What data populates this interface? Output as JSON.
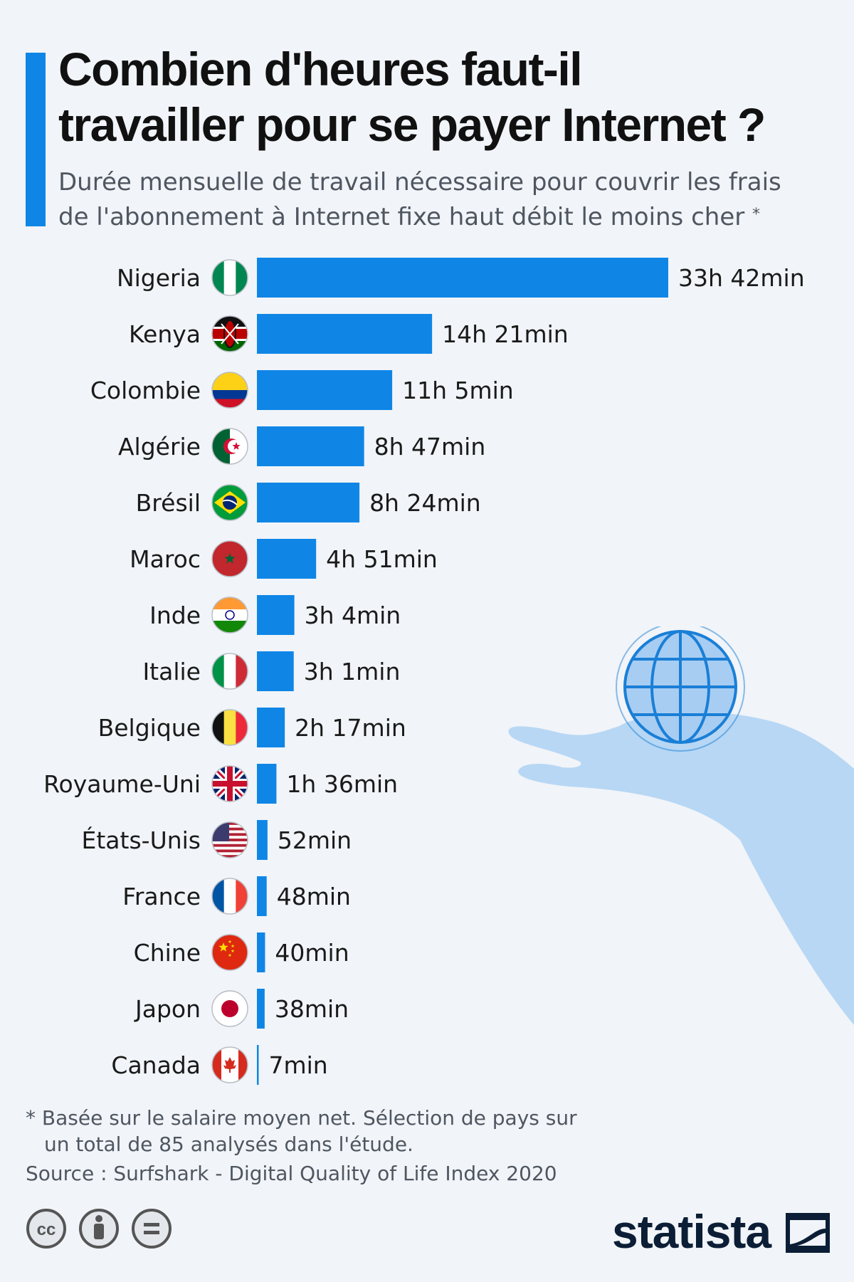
{
  "header": {
    "title_line1": "Combien d'heures faut-il",
    "title_line2": "travailler pour se payer Internet ?",
    "subtitle_line1": "Durée mensuelle de travail nécessaire pour couvrir les frais",
    "subtitle_line2": "de l'abonnement à Internet fixe haut débit le moins cher",
    "subtitle_marker": "*"
  },
  "colors": {
    "accent": "#0f86e6",
    "bar": "#0f86e6",
    "background": "#f1f4f8"
  },
  "chart_data": {
    "type": "bar",
    "orientation": "horizontal",
    "unit": "minutes",
    "grid": false,
    "categories": [
      "Nigeria",
      "Kenya",
      "Colombie",
      "Algérie",
      "Brésil",
      "Maroc",
      "Inde",
      "Italie",
      "Belgique",
      "Royaume-Uni",
      "États-Unis",
      "France",
      "Chine",
      "Japon",
      "Canada"
    ],
    "values": [
      2022,
      861,
      665,
      527,
      504,
      291,
      184,
      181,
      137,
      96,
      52,
      48,
      40,
      38,
      7
    ],
    "value_labels": [
      "33h 42min",
      "14h 21min",
      "11h 5min",
      "8h 47min",
      "8h 24min",
      "4h 51min",
      "3h 4min",
      "3h 1min",
      "2h 17min",
      "1h 36min",
      "52min",
      "48min",
      "40min",
      "38min",
      "7min"
    ],
    "flag_icons": [
      "flag-nigeria-icon",
      "flag-kenya-icon",
      "flag-colombia-icon",
      "flag-algeria-icon",
      "flag-brazil-icon",
      "flag-morocco-icon",
      "flag-india-icon",
      "flag-italy-icon",
      "flag-belgium-icon",
      "flag-uk-icon",
      "flag-usa-icon",
      "flag-france-icon",
      "flag-china-icon",
      "flag-japan-icon",
      "flag-canada-icon"
    ]
  },
  "footer": {
    "note_line1": "* Basée sur le salaire moyen net. Sélection de pays sur",
    "note_line2": "un total de 85 analysés dans l'étude.",
    "source": "Source : Surfshark - Digital Quality of Life Index 2020",
    "brand": "statista"
  },
  "icons": {
    "license": [
      "cc-icon",
      "attribution-icon",
      "no-derivatives-icon"
    ],
    "illustration": [
      "globe-icon",
      "hand-icon"
    ]
  }
}
